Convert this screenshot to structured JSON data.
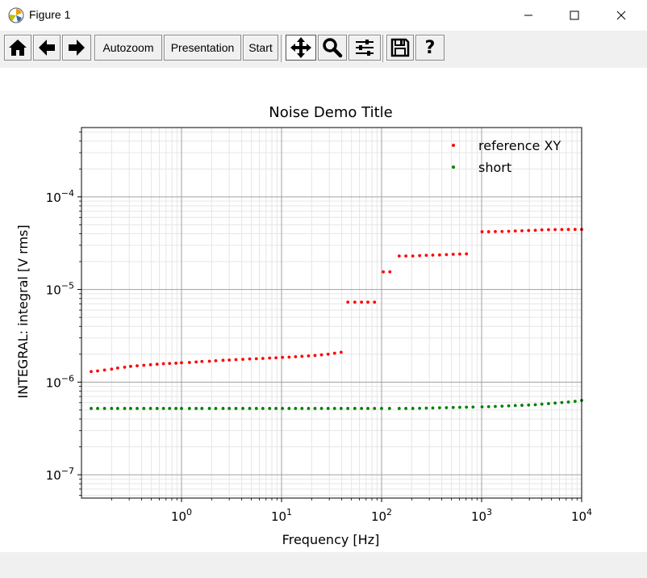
{
  "window": {
    "title": "Figure 1",
    "icon": "matplotlib-icon",
    "controls": [
      "minimize-icon",
      "maximize-icon",
      "close-icon"
    ]
  },
  "toolbar": {
    "home_icon": "home-icon",
    "back_icon": "arrow-left-icon",
    "forward_icon": "arrow-right-icon",
    "autozoom_label": "Autozoom",
    "presentation_label": "Presentation",
    "start_label": "Start",
    "pan_icon": "move-icon",
    "zoom_icon": "magnifier-icon",
    "configure_icon": "sliders-icon",
    "save_icon": "floppy-disk-icon",
    "help_label": "?"
  },
  "chart_data": {
    "type": "scatter",
    "title": "Noise Demo Title",
    "xlabel": "Frequency [Hz]",
    "ylabel": "INTEGRAL: integral [V rms]",
    "xscale": "log",
    "yscale": "log",
    "xlim": [
      0.1,
      10000
    ],
    "ylim": [
      5.6e-08,
      0.00056
    ],
    "x_ticks": [
      {
        "base": "10",
        "exp": "0",
        "value": 1
      },
      {
        "base": "10",
        "exp": "1",
        "value": 10
      },
      {
        "base": "10",
        "exp": "2",
        "value": 100
      },
      {
        "base": "10",
        "exp": "3",
        "value": 1000
      },
      {
        "base": "10",
        "exp": "4",
        "value": 10000
      }
    ],
    "y_ticks": [
      {
        "base": "10",
        "exp": "−7",
        "value": 1e-07
      },
      {
        "base": "10",
        "exp": "−6",
        "value": 1e-06
      },
      {
        "base": "10",
        "exp": "−5",
        "value": 1e-05
      },
      {
        "base": "10",
        "exp": "−4",
        "value": 0.0001
      }
    ],
    "grid": true,
    "legend_position": "top-right",
    "series": [
      {
        "name": "reference XY",
        "color": "#ff0000",
        "x": [
          0.125,
          0.145,
          0.17,
          0.2,
          0.23,
          0.27,
          0.31,
          0.36,
          0.42,
          0.49,
          0.57,
          0.66,
          0.76,
          0.88,
          1.0,
          1.2,
          1.4,
          1.6,
          1.9,
          2.2,
          2.6,
          3.0,
          3.5,
          4.1,
          4.8,
          5.6,
          6.5,
          7.6,
          8.8,
          10.2,
          11.9,
          13.8,
          16.0,
          18.6,
          21.6,
          25.1,
          29.2,
          33.9,
          39.4,
          46,
          54,
          63,
          73,
          85,
          104,
          121,
          150,
          175,
          205,
          240,
          280,
          325,
          380,
          445,
          520,
          605,
          705,
          1010,
          1175,
          1370,
          1600,
          1865,
          2170,
          2530,
          2950,
          3440,
          4000,
          4665,
          5430,
          6330,
          7370,
          8590,
          10000
        ],
        "y": [
          1.3e-06,
          1.32e-06,
          1.35e-06,
          1.38e-06,
          1.42e-06,
          1.45e-06,
          1.48e-06,
          1.5e-06,
          1.52e-06,
          1.54e-06,
          1.56e-06,
          1.58e-06,
          1.59e-06,
          1.6e-06,
          1.62e-06,
          1.63e-06,
          1.65e-06,
          1.67e-06,
          1.68e-06,
          1.7e-06,
          1.72e-06,
          1.73e-06,
          1.75e-06,
          1.76e-06,
          1.78e-06,
          1.79e-06,
          1.8e-06,
          1.82e-06,
          1.83e-06,
          1.85e-06,
          1.86e-06,
          1.88e-06,
          1.9e-06,
          1.92e-06,
          1.94e-06,
          1.97e-06,
          2e-06,
          2.05e-06,
          2.1e-06,
          7.3e-06,
          7.3e-06,
          7.3e-06,
          7.3e-06,
          7.3e-06,
          1.55e-05,
          1.55e-05,
          2.3e-05,
          2.3e-05,
          2.3e-05,
          2.32e-05,
          2.34e-05,
          2.35e-05,
          2.36e-05,
          2.38e-05,
          2.4e-05,
          2.41e-05,
          2.42e-05,
          4.2e-05,
          4.2e-05,
          4.22e-05,
          4.23e-05,
          4.25e-05,
          4.28e-05,
          4.3e-05,
          4.33e-05,
          4.36e-05,
          4.4e-05,
          4.42e-05,
          4.43e-05,
          4.44e-05,
          4.45e-05,
          4.45e-05,
          4.45e-05
        ]
      },
      {
        "name": "short",
        "color": "#008000",
        "x": [
          0.125,
          0.145,
          0.17,
          0.2,
          0.23,
          0.27,
          0.31,
          0.36,
          0.42,
          0.49,
          0.57,
          0.66,
          0.76,
          0.88,
          1.0,
          1.2,
          1.4,
          1.6,
          1.9,
          2.2,
          2.6,
          3.0,
          3.5,
          4.1,
          4.8,
          5.6,
          6.5,
          7.6,
          8.8,
          10.2,
          11.9,
          13.8,
          16.0,
          18.6,
          21.6,
          25.1,
          29.2,
          33.9,
          39.4,
          46,
          54,
          63,
          73,
          85,
          100,
          120,
          150,
          175,
          205,
          240,
          280,
          325,
          380,
          445,
          520,
          605,
          705,
          820,
          1010,
          1175,
          1370,
          1600,
          1865,
          2170,
          2530,
          2950,
          3440,
          4000,
          4665,
          5430,
          6330,
          7370,
          8590,
          10000
        ],
        "y": [
          5.2e-07,
          5.2e-07,
          5.2e-07,
          5.2e-07,
          5.2e-07,
          5.2e-07,
          5.2e-07,
          5.2e-07,
          5.2e-07,
          5.2e-07,
          5.2e-07,
          5.2e-07,
          5.2e-07,
          5.2e-07,
          5.2e-07,
          5.2e-07,
          5.2e-07,
          5.2e-07,
          5.2e-07,
          5.2e-07,
          5.2e-07,
          5.2e-07,
          5.2e-07,
          5.2e-07,
          5.2e-07,
          5.2e-07,
          5.2e-07,
          5.2e-07,
          5.2e-07,
          5.2e-07,
          5.2e-07,
          5.2e-07,
          5.2e-07,
          5.2e-07,
          5.2e-07,
          5.2e-07,
          5.2e-07,
          5.2e-07,
          5.2e-07,
          5.2e-07,
          5.2e-07,
          5.2e-07,
          5.2e-07,
          5.2e-07,
          5.2e-07,
          5.2e-07,
          5.2e-07,
          5.2e-07,
          5.2e-07,
          5.22e-07,
          5.24e-07,
          5.26e-07,
          5.28e-07,
          5.3e-07,
          5.32e-07,
          5.34e-07,
          5.36e-07,
          5.38e-07,
          5.4e-07,
          5.43e-07,
          5.46e-07,
          5.5e-07,
          5.54e-07,
          5.58e-07,
          5.62e-07,
          5.66e-07,
          5.7e-07,
          5.78e-07,
          5.86e-07,
          5.94e-07,
          6.02e-07,
          6.1e-07,
          6.2e-07,
          6.35e-07
        ]
      }
    ]
  }
}
